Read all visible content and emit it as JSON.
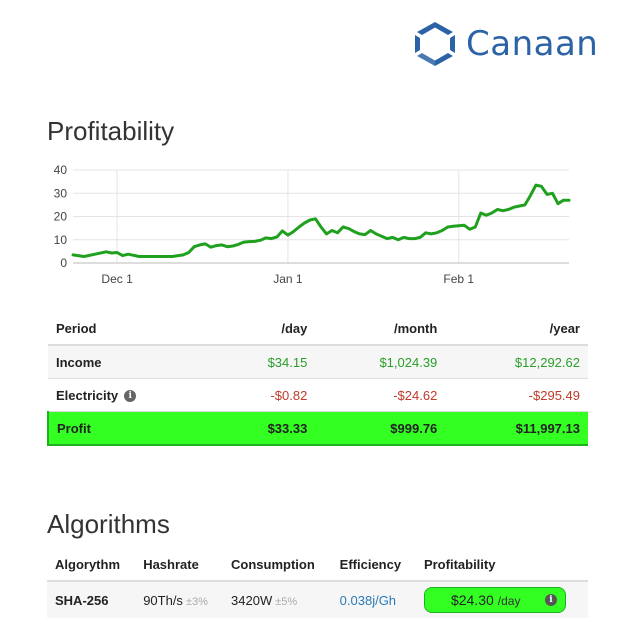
{
  "brand": {
    "name": "Canaan",
    "color": "#2c63a6"
  },
  "profitability": {
    "title": "Profitability",
    "table": {
      "headers": [
        "Period",
        "/day",
        "/month",
        "/year"
      ],
      "rows": [
        {
          "label": "Income",
          "day": "$34.15",
          "month": "$1,024.39",
          "year": "$12,292.62"
        },
        {
          "label": "Electricity",
          "day": "-$0.82",
          "month": "-$24.62",
          "year": "-$295.49"
        },
        {
          "label": "Profit",
          "day": "$33.33",
          "month": "$999.76",
          "year": "$11,997.13"
        }
      ]
    }
  },
  "chart_data": {
    "type": "line",
    "title": "",
    "xlabel": "",
    "ylabel": "",
    "ylim": [
      0,
      40
    ],
    "yticks": [
      0,
      10,
      20,
      30,
      40
    ],
    "xticks": [
      {
        "label": "Dec 1",
        "x": 8
      },
      {
        "label": "Jan 1",
        "x": 39
      },
      {
        "label": "Feb 1",
        "x": 70
      }
    ],
    "xlim": [
      0,
      90
    ],
    "grid": true,
    "color": "#1fa01f",
    "series": [
      {
        "x": [
          0,
          2,
          4,
          6,
          7,
          8,
          9,
          10,
          11,
          12,
          13,
          14,
          16,
          18,
          20,
          21,
          22,
          23,
          24,
          25,
          26,
          27,
          28,
          29,
          30,
          31,
          32,
          33,
          34,
          35,
          36,
          37,
          38,
          39,
          40,
          41,
          42,
          43,
          44,
          45,
          46,
          47,
          48,
          49,
          50,
          51,
          52,
          53,
          54,
          55,
          56,
          57,
          58,
          59,
          60,
          61,
          62,
          63,
          64,
          65,
          66,
          67,
          68,
          69,
          70,
          71,
          72,
          73,
          74,
          75,
          76,
          77,
          78,
          79,
          80,
          81,
          82,
          83,
          84,
          85,
          86,
          87,
          88,
          89,
          90
        ],
        "y": [
          3.5,
          2.8,
          3.8,
          4.8,
          4.3,
          4.5,
          3.2,
          3.8,
          3.3,
          2.8,
          2.8,
          2.8,
          2.8,
          2.8,
          3.5,
          4.5,
          7,
          7.8,
          8.2,
          6.8,
          7.5,
          7.8,
          7.0,
          7.3,
          8.0,
          9.0,
          9.2,
          9.3,
          9.8,
          10.8,
          10.5,
          11.2,
          13.8,
          12.0,
          13.5,
          15.5,
          17.2,
          18.5,
          19.0,
          15.5,
          12.5,
          14.0,
          13.0,
          15.5,
          14.8,
          13.5,
          12.5,
          12.2,
          14.0,
          12.5,
          11.5,
          10.5,
          11.0,
          10.0,
          11.0,
          10.5,
          10.5,
          11.0,
          13.0,
          12.5,
          13.0,
          14.0,
          15.5,
          15.8,
          16.0,
          16.2,
          14.5,
          15.5,
          21.5,
          20.5,
          21.5,
          23.0,
          22.5,
          23.0,
          24.0,
          24.5,
          25.0,
          29.0,
          33.5,
          33.0,
          29.5,
          30.0,
          25.5,
          27.0,
          27.0
        ]
      }
    ]
  },
  "algorithms": {
    "title": "Algorithms",
    "headers": [
      "Algorythm",
      "Hashrate",
      "Consumption",
      "Efficiency",
      "Profitability"
    ],
    "rows": [
      {
        "algorithm": "SHA-256",
        "hashrate": "90Th/s",
        "hashrate_var": "±3%",
        "consumption": "3420W",
        "consumption_var": "±5%",
        "efficiency": "0.038j/Gh",
        "profitability": "$24.30",
        "profit_unit": "/day"
      }
    ]
  },
  "icons": {
    "info": "info-icon",
    "logo": "hexagon-logo-icon"
  }
}
